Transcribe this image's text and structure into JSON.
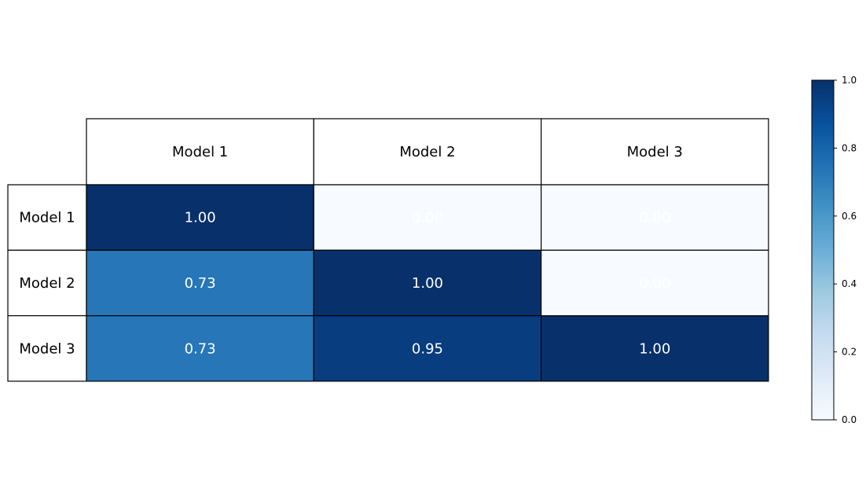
{
  "chart_data": {
    "type": "heatmap",
    "title": "",
    "columns": [
      "Model 1",
      "Model 2",
      "Model 3"
    ],
    "rows": [
      "Model 1",
      "Model 2",
      "Model 3"
    ],
    "values": [
      [
        1.0,
        0.0,
        0.0
      ],
      [
        0.73,
        1.0,
        0.0
      ],
      [
        0.73,
        0.95,
        1.0
      ]
    ],
    "value_labels": [
      [
        "1.00",
        "0.00",
        "0.00"
      ],
      [
        "0.73",
        "1.00",
        "0.00"
      ],
      [
        "0.73",
        "0.95",
        "1.00"
      ]
    ],
    "colormap": "Blues",
    "text_color": "#ffffff",
    "colorbar": {
      "range": [
        0.0,
        1.0
      ],
      "ticks": [
        0.0,
        0.2,
        0.4,
        0.6,
        0.8,
        1.0
      ],
      "tick_labels": [
        "0.0",
        "0.2",
        "0.4",
        "0.6",
        "0.8",
        "1.0"
      ],
      "placement": "right"
    }
  }
}
